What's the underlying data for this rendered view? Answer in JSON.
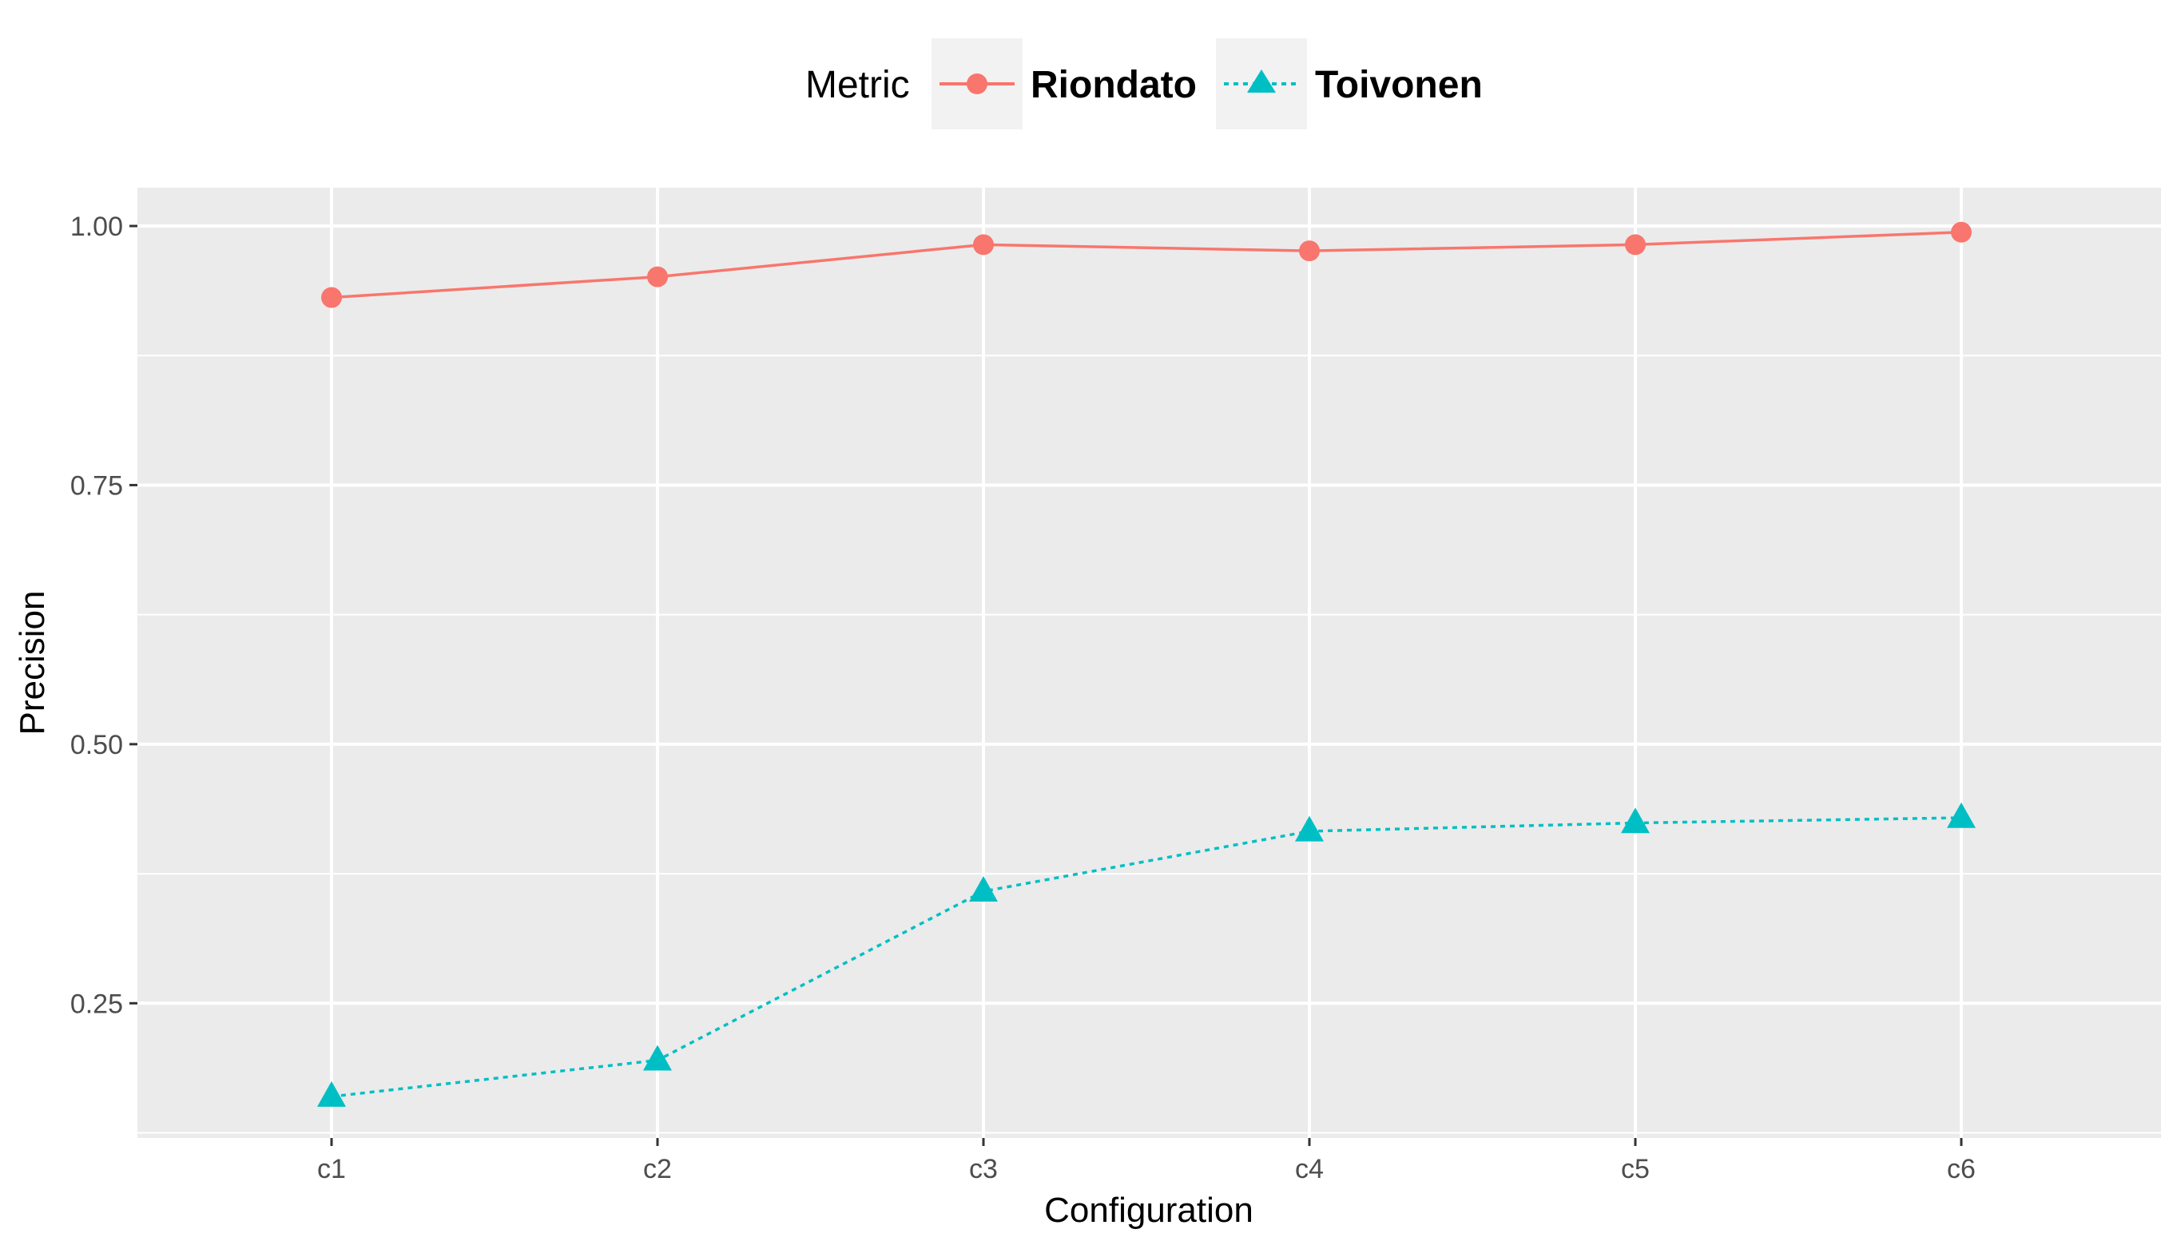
{
  "chart_data": {
    "type": "line",
    "title": "",
    "xlabel": "Configuration",
    "ylabel": "Precision",
    "categories": [
      "c1",
      "c2",
      "c3",
      "c4",
      "c5",
      "c6"
    ],
    "ylim": [
      0.12,
      1.037
    ],
    "yticks": [
      0.25,
      0.5,
      0.75,
      1.0
    ],
    "ytick_labels": [
      "0.25",
      "0.50",
      "0.75",
      "1.00"
    ],
    "grid": true,
    "legend": {
      "title": "Metric",
      "placement": "top-center"
    },
    "series": [
      {
        "name": "Riondato",
        "color": "#F8766D",
        "marker": "circle",
        "linestyle": "solid",
        "values": [
          0.931,
          0.951,
          0.982,
          0.976,
          0.982,
          0.994
        ]
      },
      {
        "name": "Toivonen",
        "color": "#00BFC4",
        "marker": "triangle",
        "linestyle": "dotted",
        "values": [
          0.16,
          0.195,
          0.358,
          0.416,
          0.424,
          0.429
        ]
      }
    ]
  }
}
